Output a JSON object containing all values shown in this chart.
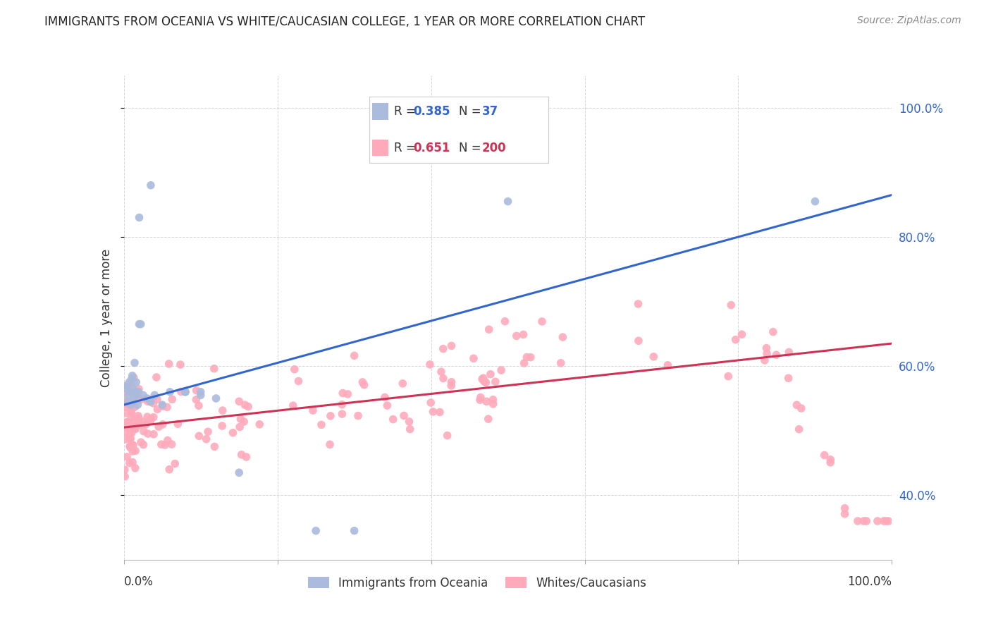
{
  "title": "IMMIGRANTS FROM OCEANIA VS WHITE/CAUCASIAN COLLEGE, 1 YEAR OR MORE CORRELATION CHART",
  "source": "Source: ZipAtlas.com",
  "ylabel": "College, 1 year or more",
  "ytick_values": [
    0.4,
    0.6,
    0.8,
    1.0
  ],
  "ytick_labels": [
    "40.0%",
    "60.0%",
    "80.0%",
    "100.0%"
  ],
  "blue_fill_color": "#AABBDD",
  "pink_fill_color": "#FFAABB",
  "blue_line_color": "#3366CC",
  "pink_line_color": "#CC3355",
  "blue_R": 0.385,
  "blue_N": 37,
  "pink_R": 0.651,
  "pink_N": 200,
  "legend_label1": "Immigrants from Oceania",
  "legend_label2": "Whites/Caucasians",
  "background_color": "#FFFFFF",
  "grid_color": "#CCCCCC",
  "xlim": [
    0.0,
    1.0
  ],
  "ylim": [
    0.3,
    1.05
  ],
  "blue_line_y0": 0.54,
  "blue_line_y1": 0.865,
  "pink_line_y0": 0.505,
  "pink_line_y1": 0.635
}
